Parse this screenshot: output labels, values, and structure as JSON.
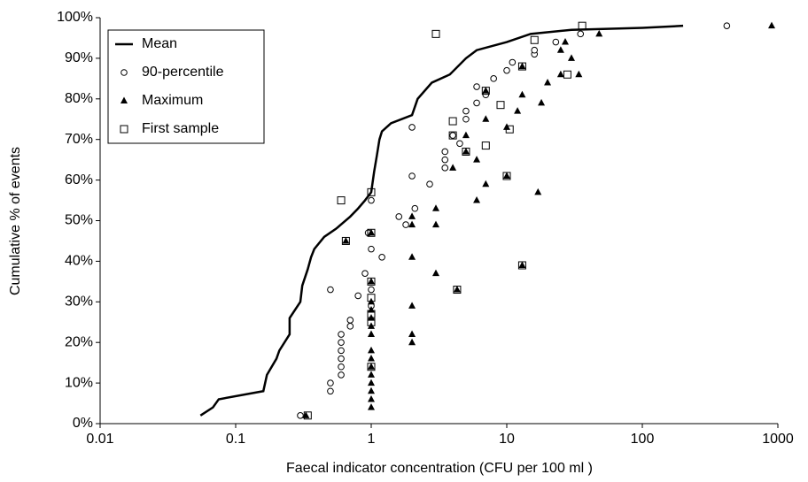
{
  "chart_data": {
    "type": "scatter",
    "xlabel": "Faecal indicator concentration (CFU per 100 ml )",
    "ylabel": "Cumulative % of events",
    "xscale": "log",
    "xlim": [
      0.01,
      1000
    ],
    "xticks": [
      0.01,
      0.1,
      1,
      10,
      100,
      1000
    ],
    "ylim": [
      0,
      100
    ],
    "yticks": [
      {
        "value": 0,
        "label": "0%"
      },
      {
        "value": 10,
        "label": "10%"
      },
      {
        "value": 20,
        "label": "20%"
      },
      {
        "value": 30,
        "label": "30%"
      },
      {
        "value": 40,
        "label": "40%"
      },
      {
        "value": 50,
        "label": "50%"
      },
      {
        "value": 60,
        "label": "60%"
      },
      {
        "value": 70,
        "label": "70%"
      },
      {
        "value": 80,
        "label": "80%"
      },
      {
        "value": 90,
        "label": "90%"
      },
      {
        "value": 100,
        "label": "100%"
      }
    ],
    "legend": "upper left",
    "series": [
      {
        "name": "Mean",
        "marker": "line",
        "color": "#000000",
        "x": [
          0.055,
          0.068,
          0.075,
          0.16,
          0.17,
          0.2,
          0.21,
          0.25,
          0.25,
          0.3,
          0.31,
          0.34,
          0.36,
          0.38,
          0.45,
          0.55,
          0.7,
          0.8,
          0.9,
          1.0,
          1.05,
          1.1,
          1.15,
          1.2,
          1.4,
          2.0,
          2.2,
          2.8,
          3.8,
          5,
          6,
          10,
          15,
          30,
          100,
          200
        ],
        "values": [
          2,
          4,
          6,
          8,
          12,
          16,
          18,
          22,
          26,
          30,
          34,
          38,
          41,
          43,
          46,
          48,
          51,
          53,
          55,
          57,
          62,
          66,
          70,
          72,
          74,
          76,
          80,
          84,
          86,
          90,
          92,
          94,
          96,
          97,
          97.5,
          98
        ]
      },
      {
        "name": "90-percentile",
        "marker": "circle",
        "color": "#000000",
        "x": [
          0.3,
          0.5,
          0.5,
          0.6,
          0.6,
          0.6,
          0.6,
          0.6,
          0.6,
          0.7,
          0.7,
          0.5,
          0.8,
          0.9,
          1.0,
          1.0,
          1.2,
          0.95,
          1.0,
          1.0,
          1.6,
          1.8,
          2.1,
          2.0,
          2.7,
          3.5,
          3.5,
          3.5,
          4.5,
          4,
          5,
          5,
          2,
          6,
          6,
          7,
          8,
          10,
          11,
          16,
          16,
          23,
          35,
          420
        ],
        "values": [
          2,
          8,
          10,
          12,
          14,
          16,
          18,
          20,
          22,
          24,
          25.5,
          33,
          31.5,
          37,
          29,
          33,
          41,
          47,
          43,
          55,
          51,
          49,
          53,
          61,
          59,
          63,
          65,
          67,
          69,
          71,
          75,
          77,
          73,
          79,
          83,
          81,
          85,
          87,
          89,
          91,
          92,
          94,
          96,
          98
        ]
      },
      {
        "name": "Maximum",
        "marker": "triangle",
        "color": "#000000",
        "x": [
          0.33,
          1,
          1,
          1,
          1,
          1,
          1,
          1,
          1,
          0.65,
          1,
          1,
          1,
          1,
          1,
          1,
          1,
          2,
          2,
          2,
          2,
          2,
          2,
          3,
          3,
          3,
          4.3,
          4,
          5,
          5,
          6,
          6,
          7,
          7,
          7,
          10,
          10,
          13,
          12,
          13,
          13,
          17,
          18,
          20,
          25,
          25,
          27,
          30,
          34,
          48,
          900
        ],
        "values": [
          2,
          4,
          6,
          8,
          10,
          12,
          14,
          16,
          18,
          45,
          22,
          24,
          26,
          28,
          30,
          35,
          47,
          20,
          22,
          29,
          41,
          49,
          51,
          37,
          49,
          53,
          33,
          63,
          67,
          71,
          65,
          55,
          59,
          75,
          82,
          61,
          73,
          39,
          77,
          81,
          88,
          57,
          79,
          84,
          86,
          92,
          94,
          90,
          86,
          96,
          98
        ]
      },
      {
        "name": "First sample",
        "marker": "square",
        "color": "#000000",
        "x": [
          0.34,
          0.65,
          0.6,
          1,
          1,
          1,
          1,
          1,
          1,
          1,
          3,
          4.3,
          4,
          4,
          5,
          7,
          7,
          9,
          10,
          10.5,
          13,
          13,
          16,
          28,
          36
        ],
        "values": [
          2,
          45,
          55,
          14,
          25,
          27,
          31,
          35,
          47,
          57,
          96,
          33,
          71,
          74.5,
          67,
          68.5,
          82,
          78.5,
          61,
          72.5,
          39,
          88,
          94.5,
          86,
          98
        ]
      }
    ]
  }
}
